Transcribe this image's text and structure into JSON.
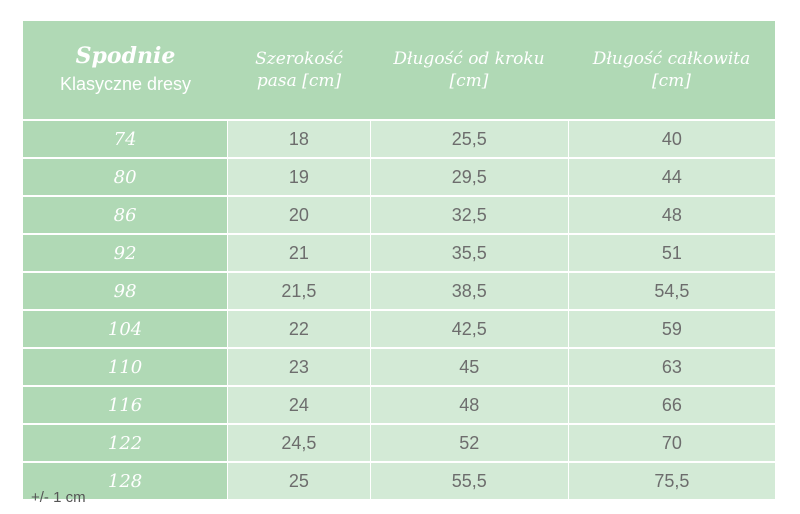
{
  "header": {
    "title": "Spodnie",
    "subtitle": "Klasyczne dresy",
    "col1": "Szerokość\npasa [cm]",
    "col2": "Długość od kroku\n[cm]",
    "col3": "Długość całkowita\n[cm]"
  },
  "rows": [
    {
      "size": "74",
      "waist": "18",
      "inseam": "25,5",
      "total": "40"
    },
    {
      "size": "80",
      "waist": "19",
      "inseam": "29,5",
      "total": "44"
    },
    {
      "size": "86",
      "waist": "20",
      "inseam": "32,5",
      "total": "48"
    },
    {
      "size": "92",
      "waist": "21",
      "inseam": "35,5",
      "total": "51"
    },
    {
      "size": "98",
      "waist": "21,5",
      "inseam": "38,5",
      "total": "54,5"
    },
    {
      "size": "104",
      "waist": "22",
      "inseam": "42,5",
      "total": "59"
    },
    {
      "size": "110",
      "waist": "23",
      "inseam": "45",
      "total": "63"
    },
    {
      "size": "116",
      "waist": "24",
      "inseam": "48",
      "total": "66"
    },
    {
      "size": "122",
      "waist": "24,5",
      "inseam": "52",
      "total": "70"
    },
    {
      "size": "128",
      "waist": "25",
      "inseam": "55,5",
      "total": "75,5"
    }
  ],
  "note": "+/- 1 cm",
  "colors": {
    "header_green": "#b0d9b5",
    "cell_green": "#d3ead6"
  }
}
